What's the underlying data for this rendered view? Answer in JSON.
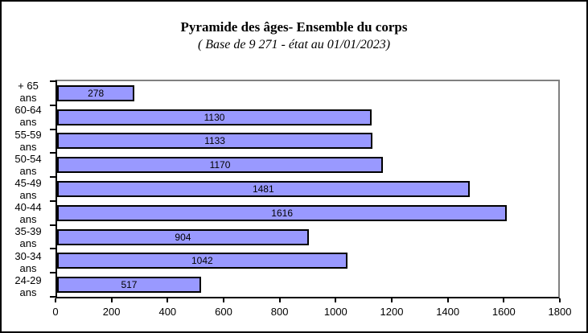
{
  "window": {
    "background": "#ffffff",
    "frame_border_color": "#000000"
  },
  "chart_data": {
    "type": "bar",
    "orientation": "horizontal",
    "title": "Pyramide des âges- Ensemble du corps",
    "subtitle": "( Base de 9 271  - état au 01/01/2023)",
    "categories": [
      "+ 65 ans",
      "60-64 ans",
      "55-59 ans",
      "50-54 ans",
      "45-49 ans",
      "40-44 ans",
      "35-39 ans",
      "30-34 ans",
      "24-29 ans"
    ],
    "category_labels": [
      [
        "+ 65",
        "ans"
      ],
      [
        "60-64",
        "ans"
      ],
      [
        "55-59",
        "ans"
      ],
      [
        "50-54",
        "ans"
      ],
      [
        "45-49",
        "ans"
      ],
      [
        "40-44",
        "ans"
      ],
      [
        "35-39",
        "ans"
      ],
      [
        "30-34",
        "ans"
      ],
      [
        "24-29",
        "ans"
      ]
    ],
    "values": [
      278,
      1130,
      1133,
      1170,
      1481,
      1616,
      904,
      1042,
      517
    ],
    "xlabel": "",
    "ylabel": "",
    "xlim": [
      0,
      1800
    ],
    "x_ticks": [
      0,
      200,
      400,
      600,
      800,
      1000,
      1200,
      1400,
      1600,
      1800
    ],
    "grid": false,
    "legend": "none",
    "data_labels": "centered-inside-bars",
    "colors": {
      "bar_fill": "#9999FF",
      "bar_border": "#000000",
      "plot_border": "#808080",
      "axis": "#000000",
      "text": "#000000",
      "background": "#ffffff"
    }
  }
}
